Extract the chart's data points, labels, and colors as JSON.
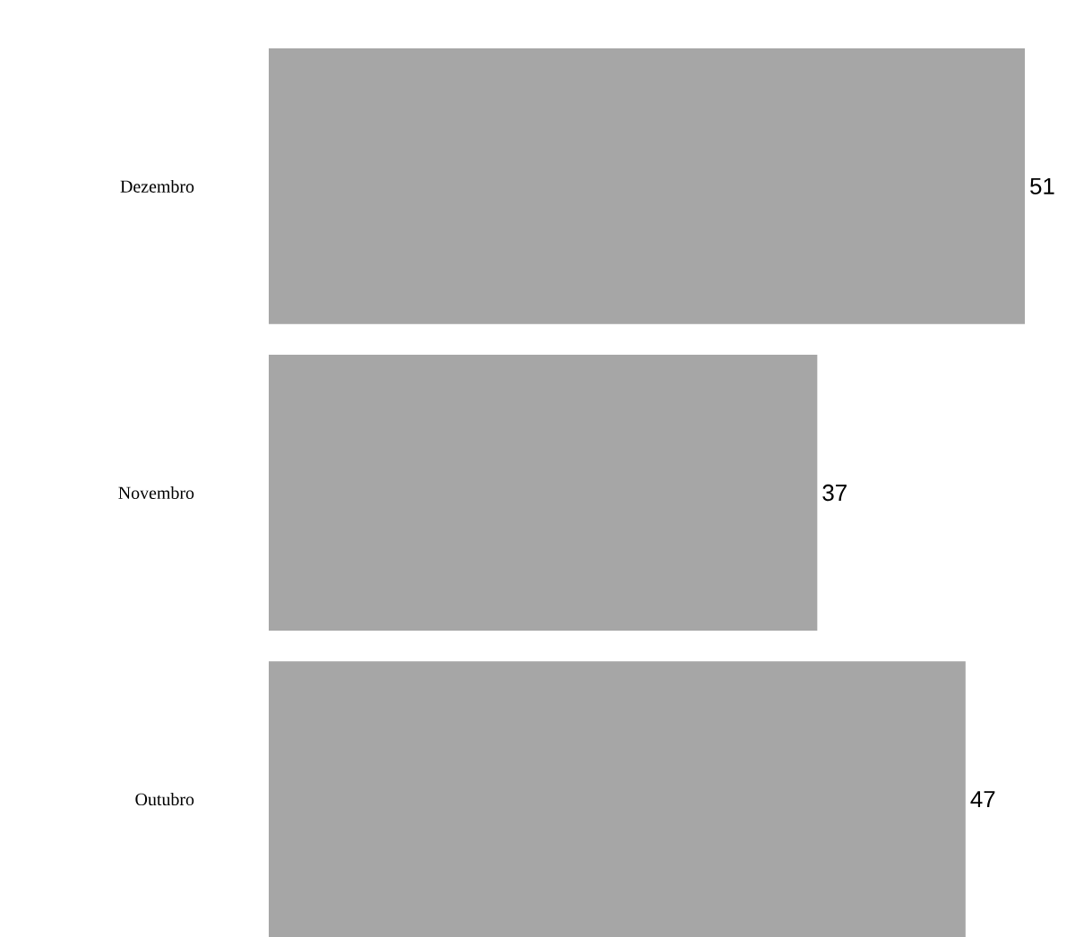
{
  "chart_data": {
    "type": "bar",
    "orientation": "horizontal",
    "categories": [
      "Dezembro",
      "Novembro",
      "Outubro"
    ],
    "values": [
      51,
      37,
      47
    ],
    "color": "#a6a6a6",
    "data_labels": true
  }
}
